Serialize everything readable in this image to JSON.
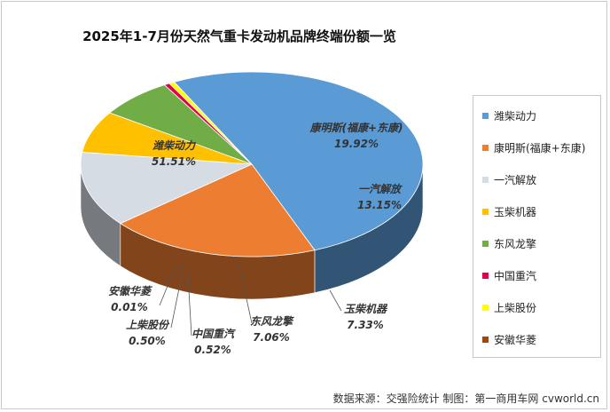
{
  "chart_data": {
    "type": "pie",
    "title": "2025年1-7月份天然气重卡发动机品牌终端份额一览",
    "slices": [
      {
        "name": "潍柴动力",
        "value": 51.51,
        "label": "51.51%",
        "color": "#5b9bd5"
      },
      {
        "name": "康明斯(福康+东康)",
        "value": 19.92,
        "label": "19.92%",
        "color": "#ed7d31"
      },
      {
        "name": "一汽解放",
        "value": 13.15,
        "label": "13.15%",
        "color": "#d6dce4"
      },
      {
        "name": "玉柴机器",
        "value": 7.33,
        "label": "7.33%",
        "color": "#ffc000"
      },
      {
        "name": "东风龙擎",
        "value": 7.06,
        "label": "7.06%",
        "color": "#70ad47"
      },
      {
        "name": "中国重汽",
        "value": 0.52,
        "label": "0.52%",
        "color": "#e0004d"
      },
      {
        "name": "上柴股份",
        "value": 0.5,
        "label": "0.50%",
        "color": "#ffff00"
      },
      {
        "name": "安徽华菱",
        "value": 0.01,
        "label": "0.01%",
        "color": "#9e480e"
      }
    ],
    "legend": "right"
  },
  "source_note": "数据来源：交强险统计  制图：第一商用车网 cvworld.cn"
}
